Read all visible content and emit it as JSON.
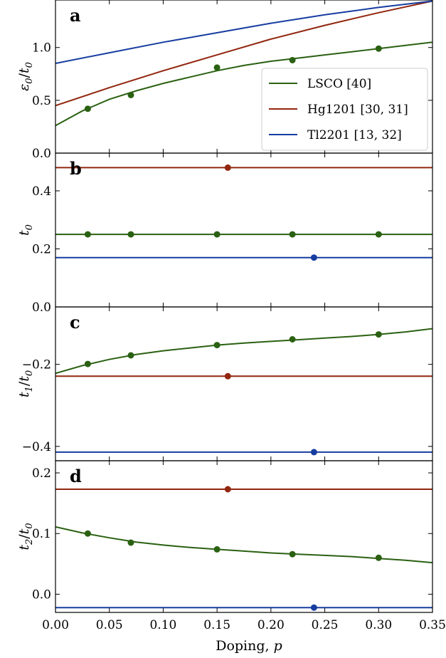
{
  "colors": {
    "LSCO": "#2a6112",
    "Hg1201": "#92260f",
    "Tl2201": "#173da0"
  },
  "legend": [
    {
      "key": "LSCO",
      "label": "LSCO [40]"
    },
    {
      "key": "Hg1201",
      "label": "Hg1201 [30, 31]"
    },
    {
      "key": "Tl2201",
      "label": "Tl2201 [13, 32]"
    }
  ],
  "xaxis": {
    "label": "Doping, p",
    "label_prefix": "Doping, ",
    "label_var": "p",
    "ticks": [
      "0.00",
      "0.05",
      "0.10",
      "0.15",
      "0.20",
      "0.25",
      "0.30",
      "0.35"
    ]
  },
  "chart_data": [
    {
      "type": "line",
      "panel": "a",
      "ylabel": "ε0/t0",
      "ylabel_parts": {
        "a": "ε",
        "a_sub": "0",
        "b": "t",
        "b_sub": "0"
      },
      "xlim": [
        0,
        0.35
      ],
      "ylim": [
        0,
        1.45
      ],
      "yticks": [
        0.0,
        0.5,
        1.0
      ],
      "ytick_labels": [
        "0.0",
        "0.5",
        "1.0"
      ],
      "series": [
        {
          "name": "LSCO",
          "curve_x": [
            0,
            0.025,
            0.05,
            0.075,
            0.1,
            0.125,
            0.15,
            0.175,
            0.2,
            0.225,
            0.25,
            0.275,
            0.3,
            0.325,
            0.35
          ],
          "curve_y": [
            0.26,
            0.4,
            0.51,
            0.59,
            0.66,
            0.72,
            0.78,
            0.83,
            0.87,
            0.9,
            0.93,
            0.96,
            0.99,
            1.02,
            1.05
          ],
          "points_x": [
            0.03,
            0.07,
            0.15,
            0.22,
            0.3
          ],
          "points_y": [
            0.42,
            0.55,
            0.81,
            0.88,
            0.99
          ]
        },
        {
          "name": "Hg1201",
          "curve_x": [
            0,
            0.05,
            0.1,
            0.15,
            0.2,
            0.25,
            0.3,
            0.35
          ],
          "curve_y": [
            0.45,
            0.62,
            0.78,
            0.93,
            1.08,
            1.21,
            1.33,
            1.44
          ],
          "points_x": [],
          "points_y": []
        },
        {
          "name": "Tl2201",
          "curve_x": [
            0,
            0.05,
            0.1,
            0.15,
            0.2,
            0.25,
            0.3,
            0.35
          ],
          "curve_y": [
            0.85,
            0.95,
            1.05,
            1.14,
            1.23,
            1.31,
            1.38,
            1.44
          ],
          "points_x": [],
          "points_y": []
        }
      ]
    },
    {
      "type": "line",
      "panel": "b",
      "ylabel": "t0",
      "ylabel_parts": {
        "a": "t",
        "a_sub": "0"
      },
      "xlim": [
        0,
        0.35
      ],
      "ylim": [
        0,
        0.53
      ],
      "yticks": [
        0.0,
        0.2,
        0.4
      ],
      "ytick_labels": [
        "0.0",
        "0.2",
        "0.4"
      ],
      "series": [
        {
          "name": "Hg1201",
          "curve_x": [
            0,
            0.35
          ],
          "curve_y": [
            0.48,
            0.48
          ],
          "points_x": [
            0.16
          ],
          "points_y": [
            0.48
          ]
        },
        {
          "name": "LSCO",
          "curve_x": [
            0,
            0.35
          ],
          "curve_y": [
            0.25,
            0.25
          ],
          "points_x": [
            0.03,
            0.07,
            0.15,
            0.22,
            0.3
          ],
          "points_y": [
            0.25,
            0.25,
            0.25,
            0.25,
            0.25
          ]
        },
        {
          "name": "Tl2201",
          "curve_x": [
            0,
            0.35
          ],
          "curve_y": [
            0.17,
            0.17
          ],
          "points_x": [
            0.24
          ],
          "points_y": [
            0.17
          ]
        }
      ]
    },
    {
      "type": "line",
      "panel": "c",
      "ylabel": "t1/t0",
      "ylabel_parts": {
        "a": "t",
        "a_sub": "1",
        "b": "t",
        "b_sub": "0"
      },
      "xlim": [
        0,
        0.35
      ],
      "ylim": [
        -0.435,
        -0.06
      ],
      "yticks": [
        -0.4,
        -0.2
      ],
      "ytick_labels": [
        "−0.4",
        "−0.2"
      ],
      "series": [
        {
          "name": "LSCO",
          "curve_x": [
            0,
            0.025,
            0.05,
            0.075,
            0.1,
            0.125,
            0.15,
            0.175,
            0.2,
            0.225,
            0.25,
            0.275,
            0.3,
            0.325,
            0.35
          ],
          "curve_y": [
            -0.222,
            -0.203,
            -0.188,
            -0.176,
            -0.167,
            -0.16,
            -0.153,
            -0.148,
            -0.144,
            -0.14,
            -0.136,
            -0.132,
            -0.127,
            -0.121,
            -0.113
          ],
          "points_x": [
            0.03,
            0.07,
            0.15,
            0.22,
            0.3
          ],
          "points_y": [
            -0.199,
            -0.178,
            -0.153,
            -0.139,
            -0.127
          ]
        },
        {
          "name": "Hg1201",
          "curve_x": [
            0,
            0.35
          ],
          "curve_y": [
            -0.229,
            -0.229
          ],
          "points_x": [
            0.16
          ],
          "points_y": [
            -0.229
          ]
        },
        {
          "name": "Tl2201",
          "curve_x": [
            0,
            0.35
          ],
          "curve_y": [
            -0.414,
            -0.414
          ],
          "points_x": [
            0.24
          ],
          "points_y": [
            -0.414
          ]
        }
      ]
    },
    {
      "type": "line",
      "panel": "d",
      "ylabel": "t2/t0",
      "ylabel_parts": {
        "a": "t",
        "a_sub": "2",
        "b": "t",
        "b_sub": "0"
      },
      "xlim": [
        0,
        0.35
      ],
      "ylim": [
        -0.03,
        0.22
      ],
      "yticks": [
        0.0,
        0.1,
        0.2
      ],
      "ytick_labels": [
        "0.0",
        "0.1",
        "0.2"
      ],
      "series": [
        {
          "name": "Hg1201",
          "curve_x": [
            0,
            0.35
          ],
          "curve_y": [
            0.173,
            0.173
          ],
          "points_x": [
            0.16
          ],
          "points_y": [
            0.173
          ]
        },
        {
          "name": "LSCO",
          "curve_x": [
            0,
            0.025,
            0.05,
            0.075,
            0.1,
            0.125,
            0.15,
            0.175,
            0.2,
            0.225,
            0.25,
            0.275,
            0.3,
            0.325,
            0.35
          ],
          "curve_y": [
            0.111,
            0.101,
            0.093,
            0.086,
            0.081,
            0.077,
            0.074,
            0.071,
            0.068,
            0.066,
            0.064,
            0.062,
            0.059,
            0.056,
            0.052
          ],
          "points_x": [
            0.03,
            0.07,
            0.15,
            0.22,
            0.3
          ],
          "points_y": [
            0.1,
            0.085,
            0.074,
            0.066,
            0.06
          ]
        },
        {
          "name": "Tl2201",
          "curve_x": [
            0,
            0.35
          ],
          "curve_y": [
            -0.022,
            -0.022
          ],
          "points_x": [
            0.24
          ],
          "points_y": [
            -0.022
          ]
        }
      ]
    }
  ]
}
